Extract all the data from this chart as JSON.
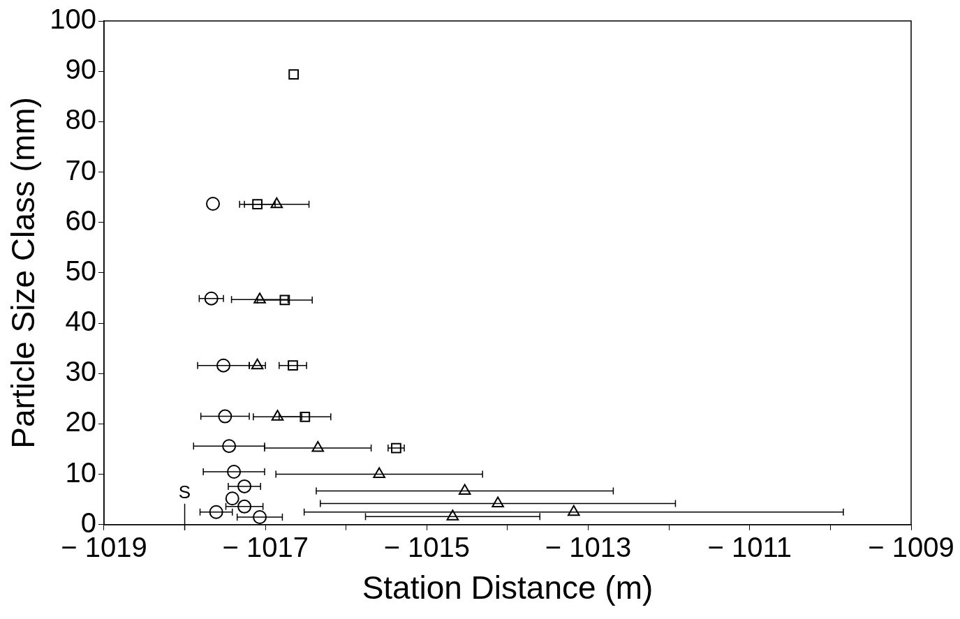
{
  "chart_data": {
    "type": "scatter",
    "xlabel": "Station Distance (m)",
    "ylabel": "Particle Size Class (mm)",
    "xlim": [
      -1019,
      -1009
    ],
    "ylim": [
      0,
      100
    ],
    "xticks": [
      -1019,
      {
        "value": -1018,
        "label": null
      },
      -1017,
      {
        "value": -1016,
        "label": null
      },
      -1015,
      {
        "value": -1014,
        "label": null
      },
      -1013,
      {
        "value": -1012,
        "label": null
      },
      -1011,
      {
        "value": -1010,
        "label": null
      },
      -1009
    ],
    "yticks": [
      0,
      10,
      20,
      30,
      40,
      50,
      60,
      70,
      80,
      90,
      100
    ],
    "grid": false,
    "legend": false,
    "ref_lines": [
      {
        "axis": "x",
        "value": -1018,
        "label": "S"
      }
    ],
    "series": [
      {
        "color": "#000000",
        "marker": "circle",
        "x": [
          -1017.65,
          -1017.67,
          -1017.52,
          -1017.5,
          -1017.45,
          -1017.39,
          -1017.26,
          -1017.41,
          -1017.26,
          -1017.61,
          -1017.07
        ],
        "values": [
          63.7,
          44.9,
          31.6,
          21.5,
          15.6,
          10.5,
          7.6,
          5.2,
          3.6,
          2.5,
          1.5
        ],
        "xerrors": [
          null,
          0.15,
          0.32,
          0.3,
          0.44,
          0.38,
          0.2,
          null,
          0.23,
          0.2,
          0.28
        ]
      },
      {
        "color": "#000000",
        "marker": "triangle",
        "x": [
          -1016.86,
          -1017.07,
          -1017.1,
          -1016.85,
          -1016.35,
          -1015.59,
          -1014.53,
          -1014.12,
          -1013.18,
          -1014.68
        ],
        "values": [
          63.6,
          44.7,
          31.6,
          21.4,
          15.2,
          10,
          6.7,
          4.2,
          2.5,
          1.6
        ],
        "xerrors": [
          0.4,
          0.35,
          0.1,
          0.3,
          0.66,
          1.28,
          1.84,
          2.2,
          3.34,
          1.08
        ]
      },
      {
        "color": "#000000",
        "marker": "square",
        "x": [
          -1016.65,
          -1017.1,
          -1016.76,
          -1016.66,
          -1016.51,
          -1015.38
        ],
        "values": [
          89.4,
          63.6,
          44.6,
          31.6,
          21.4,
          15.2
        ],
        "xerrors": [
          null,
          0.22,
          0.34,
          0.17,
          0.32,
          0.1
        ]
      }
    ]
  }
}
